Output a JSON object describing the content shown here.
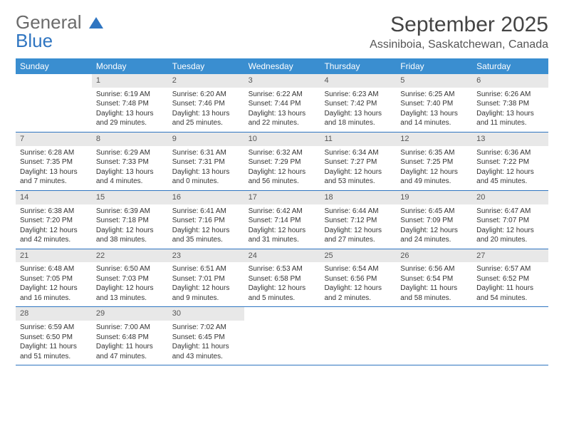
{
  "logo": {
    "top": "General",
    "bottom": "Blue"
  },
  "title": "September 2025",
  "location": "Assiniboia, Saskatchewan, Canada",
  "colors": {
    "header_bg": "#3a8ed0",
    "header_text": "#ffffff",
    "daynum_bg": "#e8e8e8",
    "week_border": "#2f75c1",
    "logo_blue": "#2f75c1",
    "text": "#333333",
    "background": "#ffffff"
  },
  "fonts": {
    "title_size_pt": 22,
    "location_size_pt": 12,
    "header_size_pt": 9,
    "body_size_pt": 7.5
  },
  "day_names": [
    "Sunday",
    "Monday",
    "Tuesday",
    "Wednesday",
    "Thursday",
    "Friday",
    "Saturday"
  ],
  "weeks": [
    [
      {
        "empty": true
      },
      {
        "n": "1",
        "sr": "Sunrise: 6:19 AM",
        "ss": "Sunset: 7:48 PM",
        "dl": "Daylight: 13 hours and 29 minutes."
      },
      {
        "n": "2",
        "sr": "Sunrise: 6:20 AM",
        "ss": "Sunset: 7:46 PM",
        "dl": "Daylight: 13 hours and 25 minutes."
      },
      {
        "n": "3",
        "sr": "Sunrise: 6:22 AM",
        "ss": "Sunset: 7:44 PM",
        "dl": "Daylight: 13 hours and 22 minutes."
      },
      {
        "n": "4",
        "sr": "Sunrise: 6:23 AM",
        "ss": "Sunset: 7:42 PM",
        "dl": "Daylight: 13 hours and 18 minutes."
      },
      {
        "n": "5",
        "sr": "Sunrise: 6:25 AM",
        "ss": "Sunset: 7:40 PM",
        "dl": "Daylight: 13 hours and 14 minutes."
      },
      {
        "n": "6",
        "sr": "Sunrise: 6:26 AM",
        "ss": "Sunset: 7:38 PM",
        "dl": "Daylight: 13 hours and 11 minutes."
      }
    ],
    [
      {
        "n": "7",
        "sr": "Sunrise: 6:28 AM",
        "ss": "Sunset: 7:35 PM",
        "dl": "Daylight: 13 hours and 7 minutes."
      },
      {
        "n": "8",
        "sr": "Sunrise: 6:29 AM",
        "ss": "Sunset: 7:33 PM",
        "dl": "Daylight: 13 hours and 4 minutes."
      },
      {
        "n": "9",
        "sr": "Sunrise: 6:31 AM",
        "ss": "Sunset: 7:31 PM",
        "dl": "Daylight: 13 hours and 0 minutes."
      },
      {
        "n": "10",
        "sr": "Sunrise: 6:32 AM",
        "ss": "Sunset: 7:29 PM",
        "dl": "Daylight: 12 hours and 56 minutes."
      },
      {
        "n": "11",
        "sr": "Sunrise: 6:34 AM",
        "ss": "Sunset: 7:27 PM",
        "dl": "Daylight: 12 hours and 53 minutes."
      },
      {
        "n": "12",
        "sr": "Sunrise: 6:35 AM",
        "ss": "Sunset: 7:25 PM",
        "dl": "Daylight: 12 hours and 49 minutes."
      },
      {
        "n": "13",
        "sr": "Sunrise: 6:36 AM",
        "ss": "Sunset: 7:22 PM",
        "dl": "Daylight: 12 hours and 45 minutes."
      }
    ],
    [
      {
        "n": "14",
        "sr": "Sunrise: 6:38 AM",
        "ss": "Sunset: 7:20 PM",
        "dl": "Daylight: 12 hours and 42 minutes."
      },
      {
        "n": "15",
        "sr": "Sunrise: 6:39 AM",
        "ss": "Sunset: 7:18 PM",
        "dl": "Daylight: 12 hours and 38 minutes."
      },
      {
        "n": "16",
        "sr": "Sunrise: 6:41 AM",
        "ss": "Sunset: 7:16 PM",
        "dl": "Daylight: 12 hours and 35 minutes."
      },
      {
        "n": "17",
        "sr": "Sunrise: 6:42 AM",
        "ss": "Sunset: 7:14 PM",
        "dl": "Daylight: 12 hours and 31 minutes."
      },
      {
        "n": "18",
        "sr": "Sunrise: 6:44 AM",
        "ss": "Sunset: 7:12 PM",
        "dl": "Daylight: 12 hours and 27 minutes."
      },
      {
        "n": "19",
        "sr": "Sunrise: 6:45 AM",
        "ss": "Sunset: 7:09 PM",
        "dl": "Daylight: 12 hours and 24 minutes."
      },
      {
        "n": "20",
        "sr": "Sunrise: 6:47 AM",
        "ss": "Sunset: 7:07 PM",
        "dl": "Daylight: 12 hours and 20 minutes."
      }
    ],
    [
      {
        "n": "21",
        "sr": "Sunrise: 6:48 AM",
        "ss": "Sunset: 7:05 PM",
        "dl": "Daylight: 12 hours and 16 minutes."
      },
      {
        "n": "22",
        "sr": "Sunrise: 6:50 AM",
        "ss": "Sunset: 7:03 PM",
        "dl": "Daylight: 12 hours and 13 minutes."
      },
      {
        "n": "23",
        "sr": "Sunrise: 6:51 AM",
        "ss": "Sunset: 7:01 PM",
        "dl": "Daylight: 12 hours and 9 minutes."
      },
      {
        "n": "24",
        "sr": "Sunrise: 6:53 AM",
        "ss": "Sunset: 6:58 PM",
        "dl": "Daylight: 12 hours and 5 minutes."
      },
      {
        "n": "25",
        "sr": "Sunrise: 6:54 AM",
        "ss": "Sunset: 6:56 PM",
        "dl": "Daylight: 12 hours and 2 minutes."
      },
      {
        "n": "26",
        "sr": "Sunrise: 6:56 AM",
        "ss": "Sunset: 6:54 PM",
        "dl": "Daylight: 11 hours and 58 minutes."
      },
      {
        "n": "27",
        "sr": "Sunrise: 6:57 AM",
        "ss": "Sunset: 6:52 PM",
        "dl": "Daylight: 11 hours and 54 minutes."
      }
    ],
    [
      {
        "n": "28",
        "sr": "Sunrise: 6:59 AM",
        "ss": "Sunset: 6:50 PM",
        "dl": "Daylight: 11 hours and 51 minutes."
      },
      {
        "n": "29",
        "sr": "Sunrise: 7:00 AM",
        "ss": "Sunset: 6:48 PM",
        "dl": "Daylight: 11 hours and 47 minutes."
      },
      {
        "n": "30",
        "sr": "Sunrise: 7:02 AM",
        "ss": "Sunset: 6:45 PM",
        "dl": "Daylight: 11 hours and 43 minutes."
      },
      {
        "empty": true
      },
      {
        "empty": true
      },
      {
        "empty": true
      },
      {
        "empty": true
      }
    ]
  ]
}
